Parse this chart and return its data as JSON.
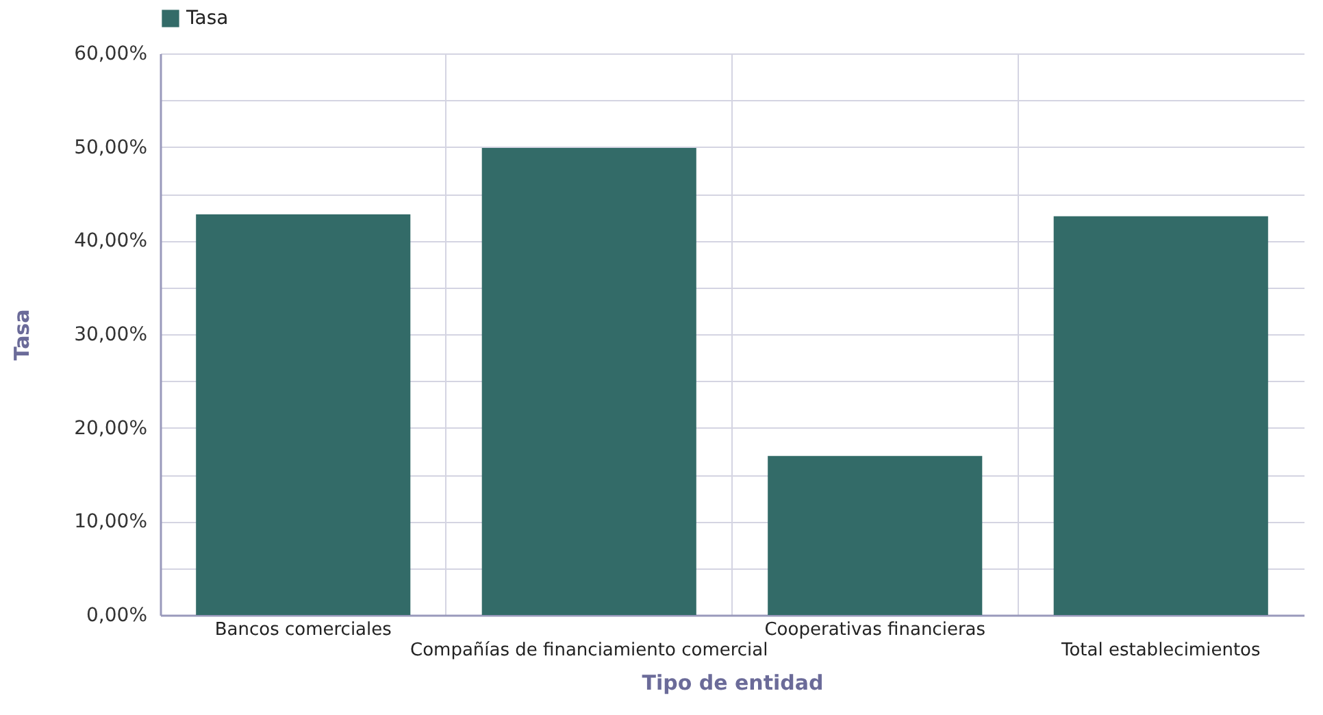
{
  "chart_data": {
    "type": "bar",
    "xlabel": "Tipo de entidad",
    "ylabel": "Tasa",
    "categories": [
      "Bancos comerciales",
      "Compañías de financiamiento comercial",
      "Cooperativas financieras",
      "Total establecimientos"
    ],
    "series": [
      {
        "name": "Tasa",
        "color": "#336b68",
        "values": [
          42.8,
          49.9,
          17.0,
          42.6
        ]
      }
    ],
    "ylim": [
      0,
      60
    ],
    "yticks": [
      {
        "value": 0,
        "label": "0,00%"
      },
      {
        "value": 5,
        "label": null
      },
      {
        "value": 10,
        "label": "10,00%"
      },
      {
        "value": 15,
        "label": null
      },
      {
        "value": 20,
        "label": "20,00%"
      },
      {
        "value": 25,
        "label": null
      },
      {
        "value": 30,
        "label": "30,00%"
      },
      {
        "value": 35,
        "label": null
      },
      {
        "value": 40,
        "label": "40,00%"
      },
      {
        "value": 45,
        "label": null
      },
      {
        "value": 50,
        "label": "50,00%"
      },
      {
        "value": 55,
        "label": null
      },
      {
        "value": 60,
        "label": "60,00%"
      }
    ],
    "grid": true,
    "legend": "top"
  }
}
